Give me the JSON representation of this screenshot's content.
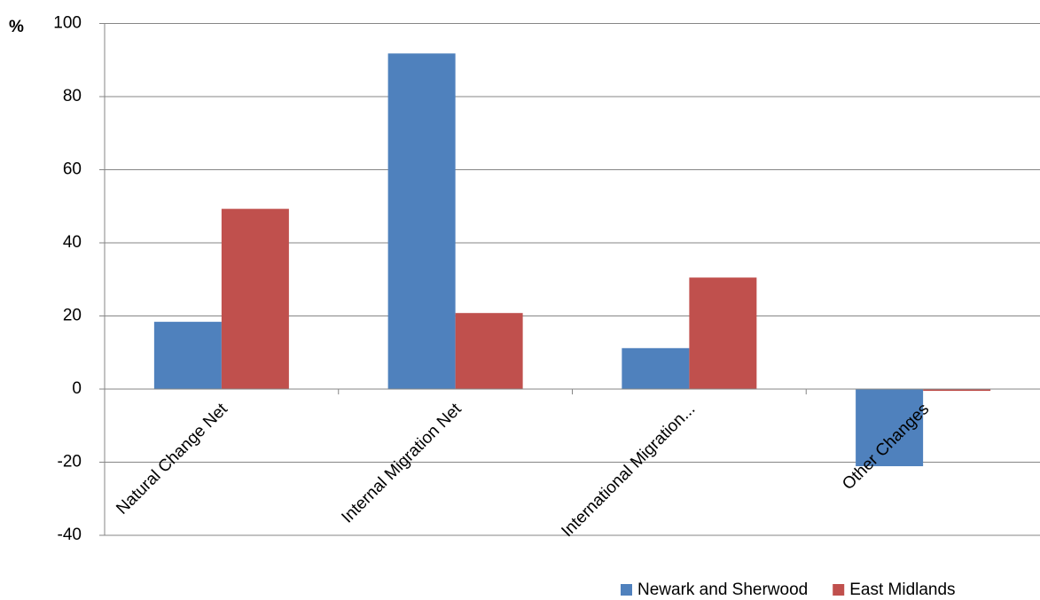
{
  "chart_data": {
    "type": "bar",
    "y_label": "%",
    "categories": [
      "Natural Change Net",
      "Internal Migration Net",
      "International Migration...",
      "Other Changes"
    ],
    "series": [
      {
        "name": "Newark and Sherwood",
        "color": "#4f81bd",
        "values": [
          18.4,
          91.8,
          11.2,
          -21.1
        ]
      },
      {
        "name": "East Midlands",
        "color": "#c0504d",
        "values": [
          49.3,
          20.8,
          30.5,
          -0.5
        ]
      }
    ],
    "ylim": [
      -40,
      100
    ],
    "yticks": [
      -40,
      -20,
      0,
      20,
      40,
      60,
      80,
      100
    ],
    "grid": true,
    "legend": "bottom-right"
  }
}
